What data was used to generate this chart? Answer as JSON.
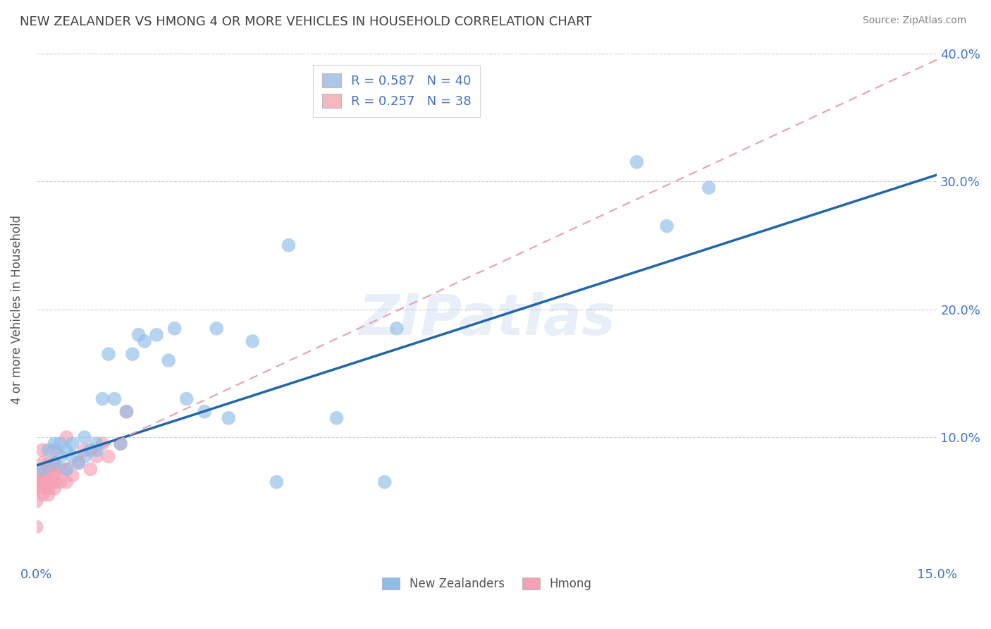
{
  "title": "NEW ZEALANDER VS HMONG 4 OR MORE VEHICLES IN HOUSEHOLD CORRELATION CHART",
  "source": "Source: ZipAtlas.com",
  "ylabel": "4 or more Vehicles in Household",
  "watermark": "ZIPatlas",
  "xmin": 0.0,
  "xmax": 0.15,
  "ymin": 0.0,
  "ymax": 0.4,
  "xticks": [
    0.0,
    0.03,
    0.06,
    0.09,
    0.12,
    0.15
  ],
  "yticks": [
    0.0,
    0.1,
    0.2,
    0.3,
    0.4
  ],
  "ytick_labels_right": [
    "",
    "10.0%",
    "20.0%",
    "30.0%",
    "40.0%"
  ],
  "legend_entries": [
    {
      "label": "R = 0.587   N = 40",
      "color": "#aec6e8"
    },
    {
      "label": "R = 0.257   N = 38",
      "color": "#f4b8c1"
    }
  ],
  "legend_labels_bottom": [
    "New Zealanders",
    "Hmong"
  ],
  "nz_color": "#90bce8",
  "hmong_color": "#f4a0b5",
  "nz_line_color": "#2166ac",
  "hmong_line_color": "#e8a0b0",
  "nz_scatter_x": [
    0.001,
    0.002,
    0.003,
    0.003,
    0.004,
    0.004,
    0.005,
    0.005,
    0.006,
    0.006,
    0.007,
    0.008,
    0.008,
    0.009,
    0.01,
    0.01,
    0.011,
    0.012,
    0.013,
    0.014,
    0.015,
    0.016,
    0.017,
    0.018,
    0.02,
    0.022,
    0.023,
    0.025,
    0.028,
    0.03,
    0.032,
    0.036,
    0.04,
    0.042,
    0.05,
    0.058,
    0.06,
    0.1,
    0.105,
    0.112
  ],
  "nz_scatter_y": [
    0.075,
    0.09,
    0.08,
    0.095,
    0.085,
    0.095,
    0.09,
    0.075,
    0.095,
    0.085,
    0.08,
    0.1,
    0.085,
    0.09,
    0.095,
    0.09,
    0.13,
    0.165,
    0.13,
    0.095,
    0.12,
    0.165,
    0.18,
    0.175,
    0.18,
    0.16,
    0.185,
    0.13,
    0.12,
    0.185,
    0.115,
    0.175,
    0.065,
    0.25,
    0.115,
    0.065,
    0.185,
    0.315,
    0.265,
    0.295
  ],
  "hmong_scatter_x": [
    0.0,
    0.0,
    0.0,
    0.0,
    0.0,
    0.001,
    0.001,
    0.001,
    0.001,
    0.001,
    0.001,
    0.001,
    0.002,
    0.002,
    0.002,
    0.002,
    0.002,
    0.002,
    0.003,
    0.003,
    0.003,
    0.003,
    0.003,
    0.003,
    0.004,
    0.004,
    0.005,
    0.005,
    0.005,
    0.006,
    0.007,
    0.008,
    0.009,
    0.01,
    0.011,
    0.012,
    0.014,
    0.015
  ],
  "hmong_scatter_y": [
    0.03,
    0.05,
    0.06,
    0.065,
    0.07,
    0.055,
    0.06,
    0.065,
    0.07,
    0.075,
    0.08,
    0.09,
    0.055,
    0.06,
    0.065,
    0.07,
    0.075,
    0.08,
    0.06,
    0.065,
    0.07,
    0.075,
    0.08,
    0.09,
    0.065,
    0.075,
    0.065,
    0.075,
    0.1,
    0.07,
    0.08,
    0.09,
    0.075,
    0.085,
    0.095,
    0.085,
    0.095,
    0.12
  ],
  "nz_R": 0.587,
  "hmong_R": 0.257,
  "nz_line_x0": 0.0,
  "nz_line_y0": 0.078,
  "nz_line_x1": 0.15,
  "nz_line_y1": 0.305,
  "hmong_line_x0": 0.0,
  "hmong_line_y0": 0.068,
  "hmong_line_x1": 0.15,
  "hmong_line_y1": 0.395,
  "background_color": "#ffffff",
  "grid_color": "#cccccc",
  "title_color": "#404040",
  "axis_label_color": "#555555",
  "tick_label_color": "#4472c4",
  "source_color": "#808080"
}
